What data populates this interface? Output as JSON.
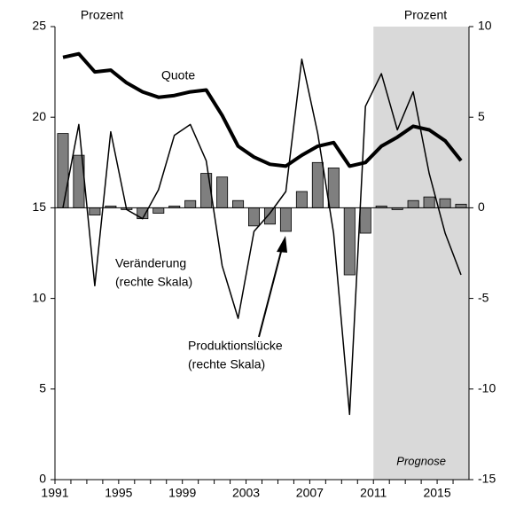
{
  "chart_data": {
    "type": "combo",
    "y_label": "Prozent",
    "y2_label": "Prozent",
    "categories": [
      "1991",
      null,
      null,
      null,
      "1995",
      null,
      null,
      null,
      "1999",
      null,
      null,
      null,
      "2003",
      null,
      null,
      null,
      "2007",
      null,
      null,
      null,
      "2011",
      null,
      null,
      null,
      "2015",
      null
    ],
    "series": [
      {
        "name": "Quote",
        "type": "line",
        "axis": "y",
        "color": "#000000",
        "values": [
          23.3,
          23.5,
          22.5,
          22.6,
          21.9,
          21.4,
          21.1,
          21.2,
          21.4,
          21.5,
          20.1,
          18.4,
          17.8,
          17.4,
          17.3,
          17.9,
          18.4,
          18.6,
          17.3,
          17.5,
          18.4,
          18.9,
          19.5,
          19.3,
          18.7,
          17.6
        ]
      },
      {
        "name": "Veränderung",
        "type": "line",
        "axis": "y2",
        "color": "#000000",
        "values": [
          0,
          4.6,
          -4.3,
          4.2,
          -0.1,
          -0.6,
          1.0,
          4.0,
          4.6,
          2.6,
          -3.2,
          -6.1,
          -1.3,
          -0.3,
          0.9,
          8.2,
          4.1,
          -1.4,
          -11.4,
          5.6,
          7.4,
          4.3,
          6.4,
          1.9,
          -1.4,
          -3.7
        ]
      },
      {
        "name": "Produktionslücke",
        "type": "bar",
        "axis": "y2",
        "color": "#7f7f7f",
        "values": [
          4.1,
          2.9,
          -0.4,
          0.1,
          -0.1,
          -0.6,
          -0.3,
          0.1,
          0.4,
          1.9,
          1.7,
          0.4,
          -1.0,
          -0.9,
          -1.3,
          0.9,
          2.5,
          2.2,
          -3.7,
          -1.4,
          0.1,
          -0.1,
          0.4,
          0.6,
          0.5,
          0.2
        ]
      }
    ],
    "annotations": [
      "Quote",
      "Veränderung",
      "(rechte Skala)",
      "Produktionslücke",
      "(rechte Skala)"
    ],
    "forecast": {
      "label": "Prognose",
      "start": "2011",
      "color": "#d9d9d9"
    },
    "ylim": [
      0,
      25
    ],
    "yticks": [
      0,
      5,
      10,
      15,
      20,
      25
    ],
    "y2lim": [
      -15,
      10
    ],
    "y2ticks": [
      -15,
      -10,
      -5,
      0,
      5,
      10
    ]
  }
}
